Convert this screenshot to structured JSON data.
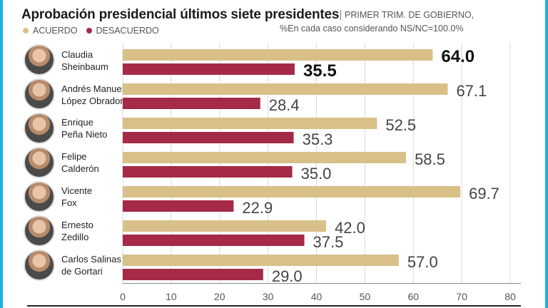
{
  "title": "Aprobación presidencial últimos siete presidentes",
  "subtitle": "PRIMER TRIM. DE GOBIERNO,",
  "note": "%En cada caso considerando NS/NC=100.0%",
  "legend": [
    {
      "label": "ACUERDO",
      "color": "#d8c088"
    },
    {
      "label": "DESACUERDO",
      "color": "#a52a47"
    }
  ],
  "colors": {
    "acuerdo": "#d8c088",
    "desacuerdo": "#a52a47",
    "frame": "#1fb0e0"
  },
  "presidents": [
    {
      "name_line1": "Claudia",
      "name_line2": "Sheinbaum",
      "icon": "woman-portrait-icon"
    },
    {
      "name_line1": "Andrés Manuel",
      "name_line2": "López Obrador",
      "icon": "man-portrait-icon"
    },
    {
      "name_line1": "Enrique",
      "name_line2": "Peña Nieto",
      "icon": "man-portrait-icon"
    },
    {
      "name_line1": "Felipe",
      "name_line2": "Calderón",
      "icon": "man-portrait-icon"
    },
    {
      "name_line1": "Vicente",
      "name_line2": "Fox",
      "icon": "man-portrait-icon"
    },
    {
      "name_line1": "Ernesto",
      "name_line2": "Zedillo",
      "icon": "man-portrait-icon"
    },
    {
      "name_line1": "Carlos Salinas",
      "name_line2": "de Gortari",
      "icon": "man-portrait-icon"
    }
  ],
  "chart_data": {
    "type": "bar",
    "orientation": "horizontal",
    "categories": [
      "Claudia Sheinbaum",
      "Andrés Manuel López Obrador",
      "Enrique Peña Nieto",
      "Felipe Calderón",
      "Vicente Fox",
      "Ernesto Zedillo",
      "Carlos Salinas de Gortari"
    ],
    "series": [
      {
        "name": "ACUERDO",
        "values": [
          64.0,
          67.1,
          52.5,
          58.5,
          69.7,
          42.0,
          57.0
        ]
      },
      {
        "name": "DESACUERDO",
        "values": [
          35.5,
          28.4,
          35.3,
          35.0,
          22.9,
          37.5,
          29.0
        ]
      }
    ],
    "value_labels": {
      "ACUERDO": [
        "64.0",
        "67.1",
        "52.5",
        "58.5",
        "69.7",
        "42.0",
        "57.0"
      ],
      "DESACUERDO": [
        "35.5",
        "28.4",
        "35.3",
        "35.0",
        "22.9",
        "37.5",
        "29.0"
      ]
    },
    "xlim": [
      0,
      80
    ],
    "xticks": [
      0,
      10,
      20,
      30,
      40,
      50,
      60,
      70,
      80
    ],
    "grid": true,
    "legend_position": "top-left",
    "highlight_first_row": true
  }
}
